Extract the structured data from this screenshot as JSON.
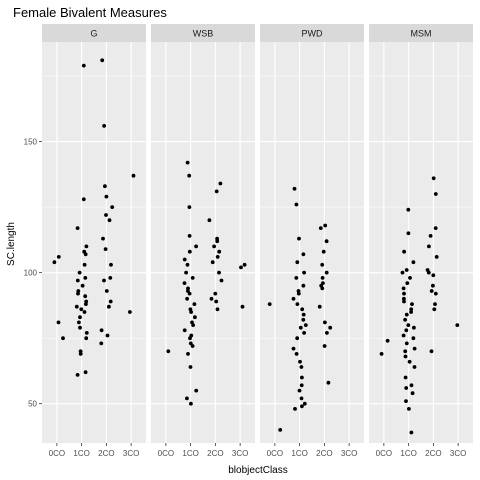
{
  "chart_data": {
    "type": "scatter",
    "title": "Female Bivalent Measures",
    "xlabel": "blobjectClass",
    "ylabel": "SC.length",
    "ylim": [
      35,
      188
    ],
    "yticks": [
      50,
      100,
      150
    ],
    "categories": [
      "0CO",
      "1CO",
      "2CO",
      "3CO"
    ],
    "grid": true,
    "colors": {
      "panel_bg": "#ebebeb",
      "grid_major": "#ffffff",
      "strip_bg": "#d9d9d9",
      "point": "#000000"
    },
    "panels": [
      {
        "name": "G",
        "points": [
          {
            "x": "0CO",
            "y": 106
          },
          {
            "x": "0CO",
            "y": 104
          },
          {
            "x": "0CO",
            "y": 81
          },
          {
            "x": "0CO",
            "y": 75
          },
          {
            "x": "1CO",
            "y": 179
          },
          {
            "x": "1CO",
            "y": 128
          },
          {
            "x": "1CO",
            "y": 117
          },
          {
            "x": "1CO",
            "y": 110
          },
          {
            "x": "1CO",
            "y": 108
          },
          {
            "x": "1CO",
            "y": 107
          },
          {
            "x": "1CO",
            "y": 103
          },
          {
            "x": "1CO",
            "y": 100
          },
          {
            "x": "1CO",
            "y": 98
          },
          {
            "x": "1CO",
            "y": 97
          },
          {
            "x": "1CO",
            "y": 95
          },
          {
            "x": "1CO",
            "y": 93
          },
          {
            "x": "1CO",
            "y": 92
          },
          {
            "x": "1CO",
            "y": 91
          },
          {
            "x": "1CO",
            "y": 89
          },
          {
            "x": "1CO",
            "y": 88
          },
          {
            "x": "1CO",
            "y": 87
          },
          {
            "x": "1CO",
            "y": 86
          },
          {
            "x": "1CO",
            "y": 85
          },
          {
            "x": "1CO",
            "y": 83
          },
          {
            "x": "1CO",
            "y": 81
          },
          {
            "x": "1CO",
            "y": 79
          },
          {
            "x": "1CO",
            "y": 77
          },
          {
            "x": "1CO",
            "y": 75
          },
          {
            "x": "1CO",
            "y": 70
          },
          {
            "x": "1CO",
            "y": 69
          },
          {
            "x": "1CO",
            "y": 62
          },
          {
            "x": "1CO",
            "y": 61
          },
          {
            "x": "2CO",
            "y": 181
          },
          {
            "x": "2CO",
            "y": 156
          },
          {
            "x": "2CO",
            "y": 133
          },
          {
            "x": "2CO",
            "y": 129
          },
          {
            "x": "2CO",
            "y": 125
          },
          {
            "x": "2CO",
            "y": 122
          },
          {
            "x": "2CO",
            "y": 120
          },
          {
            "x": "2CO",
            "y": 113
          },
          {
            "x": "2CO",
            "y": 109
          },
          {
            "x": "2CO",
            "y": 103
          },
          {
            "x": "2CO",
            "y": 98
          },
          {
            "x": "2CO",
            "y": 97
          },
          {
            "x": "2CO",
            "y": 93
          },
          {
            "x": "2CO",
            "y": 89
          },
          {
            "x": "2CO",
            "y": 87
          },
          {
            "x": "2CO",
            "y": 78
          },
          {
            "x": "2CO",
            "y": 76
          },
          {
            "x": "2CO",
            "y": 73
          },
          {
            "x": "3CO",
            "y": 137
          },
          {
            "x": "3CO",
            "y": 85
          }
        ]
      },
      {
        "name": "WSB",
        "points": [
          {
            "x": "0CO",
            "y": 70
          },
          {
            "x": "1CO",
            "y": 142
          },
          {
            "x": "1CO",
            "y": 137
          },
          {
            "x": "1CO",
            "y": 125
          },
          {
            "x": "1CO",
            "y": 114
          },
          {
            "x": "1CO",
            "y": 110
          },
          {
            "x": "1CO",
            "y": 108
          },
          {
            "x": "1CO",
            "y": 105
          },
          {
            "x": "1CO",
            "y": 103
          },
          {
            "x": "1CO",
            "y": 100
          },
          {
            "x": "1CO",
            "y": 98
          },
          {
            "x": "1CO",
            "y": 96
          },
          {
            "x": "1CO",
            "y": 94
          },
          {
            "x": "1CO",
            "y": 93
          },
          {
            "x": "1CO",
            "y": 92
          },
          {
            "x": "1CO",
            "y": 90
          },
          {
            "x": "1CO",
            "y": 88
          },
          {
            "x": "1CO",
            "y": 86
          },
          {
            "x": "1CO",
            "y": 85
          },
          {
            "x": "1CO",
            "y": 83
          },
          {
            "x": "1CO",
            "y": 81
          },
          {
            "x": "1CO",
            "y": 80
          },
          {
            "x": "1CO",
            "y": 78
          },
          {
            "x": "1CO",
            "y": 76
          },
          {
            "x": "1CO",
            "y": 75
          },
          {
            "x": "1CO",
            "y": 73
          },
          {
            "x": "1CO",
            "y": 72
          },
          {
            "x": "1CO",
            "y": 69
          },
          {
            "x": "1CO",
            "y": 64
          },
          {
            "x": "1CO",
            "y": 55
          },
          {
            "x": "1CO",
            "y": 52
          },
          {
            "x": "1CO",
            "y": 50
          },
          {
            "x": "2CO",
            "y": 134
          },
          {
            "x": "2CO",
            "y": 131
          },
          {
            "x": "2CO",
            "y": 120
          },
          {
            "x": "2CO",
            "y": 113
          },
          {
            "x": "2CO",
            "y": 112
          },
          {
            "x": "2CO",
            "y": 110
          },
          {
            "x": "2CO",
            "y": 108
          },
          {
            "x": "2CO",
            "y": 106
          },
          {
            "x": "2CO",
            "y": 104
          },
          {
            "x": "2CO",
            "y": 100
          },
          {
            "x": "2CO",
            "y": 97
          },
          {
            "x": "2CO",
            "y": 92
          },
          {
            "x": "2CO",
            "y": 90
          },
          {
            "x": "2CO",
            "y": 89
          },
          {
            "x": "2CO",
            "y": 86
          },
          {
            "x": "3CO",
            "y": 103
          },
          {
            "x": "3CO",
            "y": 102
          },
          {
            "x": "3CO",
            "y": 87
          }
        ]
      },
      {
        "name": "PWD",
        "points": [
          {
            "x": "0CO",
            "y": 88
          },
          {
            "x": "0CO",
            "y": 40
          },
          {
            "x": "1CO",
            "y": 132
          },
          {
            "x": "1CO",
            "y": 126
          },
          {
            "x": "1CO",
            "y": 113
          },
          {
            "x": "1CO",
            "y": 107
          },
          {
            "x": "1CO",
            "y": 104
          },
          {
            "x": "1CO",
            "y": 100
          },
          {
            "x": "1CO",
            "y": 98
          },
          {
            "x": "1CO",
            "y": 95
          },
          {
            "x": "1CO",
            "y": 93
          },
          {
            "x": "1CO",
            "y": 92
          },
          {
            "x": "1CO",
            "y": 90
          },
          {
            "x": "1CO",
            "y": 88
          },
          {
            "x": "1CO",
            "y": 86
          },
          {
            "x": "1CO",
            "y": 84
          },
          {
            "x": "1CO",
            "y": 82
          },
          {
            "x": "1CO",
            "y": 80
          },
          {
            "x": "1CO",
            "y": 79
          },
          {
            "x": "1CO",
            "y": 77
          },
          {
            "x": "1CO",
            "y": 75
          },
          {
            "x": "1CO",
            "y": 71
          },
          {
            "x": "1CO",
            "y": 69
          },
          {
            "x": "1CO",
            "y": 66
          },
          {
            "x": "1CO",
            "y": 64
          },
          {
            "x": "1CO",
            "y": 60
          },
          {
            "x": "1CO",
            "y": 57
          },
          {
            "x": "1CO",
            "y": 55
          },
          {
            "x": "1CO",
            "y": 52
          },
          {
            "x": "1CO",
            "y": 50
          },
          {
            "x": "1CO",
            "y": 49
          },
          {
            "x": "1CO",
            "y": 48
          },
          {
            "x": "2CO",
            "y": 118
          },
          {
            "x": "2CO",
            "y": 117
          },
          {
            "x": "2CO",
            "y": 112
          },
          {
            "x": "2CO",
            "y": 108
          },
          {
            "x": "2CO",
            "y": 103
          },
          {
            "x": "2CO",
            "y": 100
          },
          {
            "x": "2CO",
            "y": 98
          },
          {
            "x": "2CO",
            "y": 96
          },
          {
            "x": "2CO",
            "y": 95
          },
          {
            "x": "2CO",
            "y": 94
          },
          {
            "x": "2CO",
            "y": 87
          },
          {
            "x": "2CO",
            "y": 81
          },
          {
            "x": "2CO",
            "y": 79
          },
          {
            "x": "2CO",
            "y": 77
          },
          {
            "x": "2CO",
            "y": 72
          },
          {
            "x": "2CO",
            "y": 58
          }
        ]
      },
      {
        "name": "MSM",
        "points": [
          {
            "x": "0CO",
            "y": 74
          },
          {
            "x": "0CO",
            "y": 69
          },
          {
            "x": "1CO",
            "y": 124
          },
          {
            "x": "1CO",
            "y": 115
          },
          {
            "x": "1CO",
            "y": 108
          },
          {
            "x": "1CO",
            "y": 104
          },
          {
            "x": "1CO",
            "y": 101
          },
          {
            "x": "1CO",
            "y": 100
          },
          {
            "x": "1CO",
            "y": 98
          },
          {
            "x": "1CO",
            "y": 96
          },
          {
            "x": "1CO",
            "y": 94
          },
          {
            "x": "1CO",
            "y": 92
          },
          {
            "x": "1CO",
            "y": 90
          },
          {
            "x": "1CO",
            "y": 89
          },
          {
            "x": "1CO",
            "y": 88
          },
          {
            "x": "1CO",
            "y": 86
          },
          {
            "x": "1CO",
            "y": 85
          },
          {
            "x": "1CO",
            "y": 84
          },
          {
            "x": "1CO",
            "y": 82
          },
          {
            "x": "1CO",
            "y": 80
          },
          {
            "x": "1CO",
            "y": 79
          },
          {
            "x": "1CO",
            "y": 78
          },
          {
            "x": "1CO",
            "y": 76
          },
          {
            "x": "1CO",
            "y": 75
          },
          {
            "x": "1CO",
            "y": 73
          },
          {
            "x": "1CO",
            "y": 71
          },
          {
            "x": "1CO",
            "y": 70
          },
          {
            "x": "1CO",
            "y": 68
          },
          {
            "x": "1CO",
            "y": 66
          },
          {
            "x": "1CO",
            "y": 64
          },
          {
            "x": "1CO",
            "y": 60
          },
          {
            "x": "1CO",
            "y": 57
          },
          {
            "x": "1CO",
            "y": 56
          },
          {
            "x": "1CO",
            "y": 54
          },
          {
            "x": "1CO",
            "y": 51
          },
          {
            "x": "1CO",
            "y": 48
          },
          {
            "x": "1CO",
            "y": 39
          },
          {
            "x": "2CO",
            "y": 136
          },
          {
            "x": "2CO",
            "y": 130
          },
          {
            "x": "2CO",
            "y": 117
          },
          {
            "x": "2CO",
            "y": 114
          },
          {
            "x": "2CO",
            "y": 110
          },
          {
            "x": "2CO",
            "y": 106
          },
          {
            "x": "2CO",
            "y": 101
          },
          {
            "x": "2CO",
            "y": 100
          },
          {
            "x": "2CO",
            "y": 99
          },
          {
            "x": "2CO",
            "y": 95
          },
          {
            "x": "2CO",
            "y": 93
          },
          {
            "x": "2CO",
            "y": 92
          },
          {
            "x": "2CO",
            "y": 88
          },
          {
            "x": "2CO",
            "y": 86
          },
          {
            "x": "2CO",
            "y": 70
          },
          {
            "x": "3CO",
            "y": 80
          }
        ]
      }
    ]
  }
}
